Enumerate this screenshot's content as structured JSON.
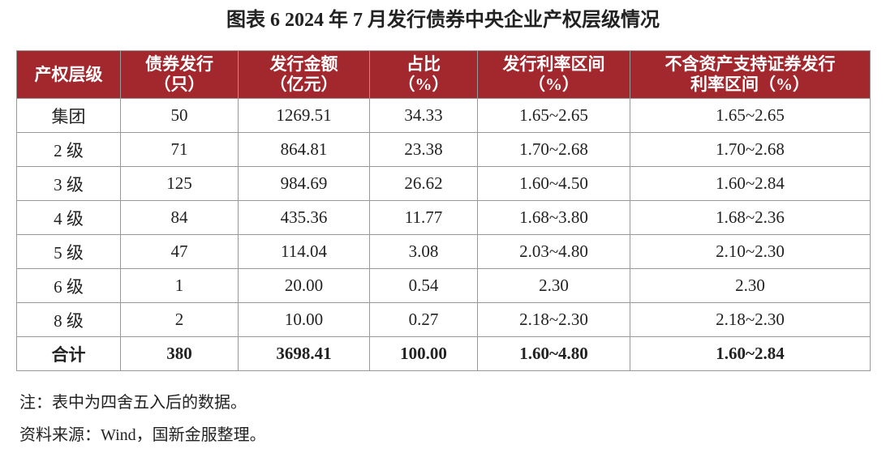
{
  "title": "图表 6  2024 年 7 月发行债券中央企业产权层级情况",
  "table": {
    "header": [
      [
        "产权层级"
      ],
      [
        "债券发行",
        "（只）"
      ],
      [
        "发行金额",
        "（亿元）"
      ],
      [
        "占比",
        "（%）"
      ],
      [
        "发行利率区间",
        "（%）"
      ],
      [
        "不含资产支持证券发行",
        "利率区间（%）"
      ]
    ],
    "rows": [
      [
        "集团",
        "50",
        "1269.51",
        "34.33",
        "1.65~2.65",
        "1.65~2.65"
      ],
      [
        "2 级",
        "71",
        "864.81",
        "23.38",
        "1.70~2.68",
        "1.70~2.68"
      ],
      [
        "3 级",
        "125",
        "984.69",
        "26.62",
        "1.60~4.50",
        "1.60~2.84"
      ],
      [
        "4 级",
        "84",
        "435.36",
        "11.77",
        "1.68~3.80",
        "1.68~2.36"
      ],
      [
        "5 级",
        "47",
        "114.04",
        "3.08",
        "2.03~4.80",
        "2.10~2.30"
      ],
      [
        "6 级",
        "1",
        "20.00",
        "0.54",
        "2.30",
        "2.30"
      ],
      [
        "8 级",
        "2",
        "10.00",
        "0.27",
        "2.18~2.30",
        "2.18~2.30"
      ]
    ],
    "total": [
      "合计",
      "380",
      "3698.41",
      "100.00",
      "1.60~4.80",
      "1.60~2.84"
    ]
  },
  "notes": [
    "注：表中为四舍五入后的数据。",
    "资料来源：Wind，国新金服整理。"
  ]
}
